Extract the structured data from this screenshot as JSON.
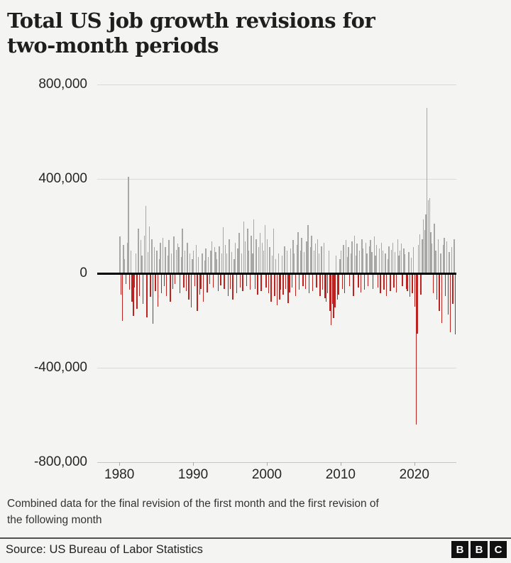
{
  "header": {
    "title_lines": [
      "Total US job growth revisions for",
      "two-month periods"
    ]
  },
  "chart_data": {
    "type": "bar",
    "title": "Total US job growth revisions for two-month periods",
    "xlabel": "",
    "ylabel": "",
    "x_tick_labels": [
      "1980",
      "1990",
      "2000",
      "2010",
      "2020"
    ],
    "y_tick_labels": [
      "800,000",
      "400,000",
      "0",
      "-400,000",
      "-800,000"
    ],
    "y_ticks": [
      800000,
      400000,
      0,
      -400000,
      -800000
    ],
    "ylim": [
      -800000,
      800000
    ],
    "xlim_years": [
      1977.0,
      2025.7
    ],
    "x_ticks_years": [
      1980,
      1990,
      2000,
      2010,
      2020
    ],
    "grid": true,
    "legend": false,
    "bar_colors": {
      "positive": "#a7a7a7",
      "negative": "#bc2220"
    },
    "zero_line_color": "#000000",
    "x_start_year": 1980,
    "x_step_years": 0.16667,
    "values": [
      155000,
      -90000,
      -200000,
      120000,
      60000,
      -45000,
      130000,
      410000,
      -70000,
      95000,
      -120000,
      -180000,
      -60000,
      85000,
      -150000,
      190000,
      -95000,
      140000,
      75000,
      -130000,
      160000,
      285000,
      -185000,
      90000,
      200000,
      -100000,
      145000,
      -215000,
      110000,
      -75000,
      95000,
      -140000,
      60000,
      130000,
      -85000,
      150000,
      -55000,
      110000,
      -95000,
      75000,
      140000,
      -120000,
      85000,
      -65000,
      155000,
      -45000,
      100000,
      125000,
      110000,
      -85000,
      70000,
      190000,
      -60000,
      95000,
      -75000,
      130000,
      -110000,
      85000,
      -145000,
      60000,
      95000,
      -55000,
      120000,
      -160000,
      70000,
      -90000,
      -65000,
      85000,
      -120000,
      55000,
      105000,
      -80000,
      70000,
      -45000,
      95000,
      135000,
      -60000,
      110000,
      90000,
      60000,
      -75000,
      115000,
      -50000,
      85000,
      195000,
      -65000,
      120000,
      85000,
      -95000,
      145000,
      -65000,
      90000,
      -110000,
      60000,
      130000,
      -85000,
      105000,
      170000,
      -60000,
      85000,
      -75000,
      220000,
      135000,
      -55000,
      190000,
      95000,
      -70000,
      160000,
      85000,
      230000,
      -65000,
      145000,
      -90000,
      110000,
      170000,
      -75000,
      130000,
      95000,
      205000,
      -60000,
      145000,
      -85000,
      110000,
      -120000,
      75000,
      190000,
      -95000,
      60000,
      -135000,
      85000,
      -110000,
      -70000,
      75000,
      -90000,
      115000,
      -65000,
      95000,
      -125000,
      -80000,
      105000,
      -60000,
      140000,
      85000,
      -95000,
      120000,
      175000,
      -70000,
      95000,
      150000,
      -55000,
      90000,
      -65000,
      135000,
      205000,
      -85000,
      110000,
      160000,
      -75000,
      95000,
      125000,
      -60000,
      145000,
      85000,
      -95000,
      115000,
      -70000,
      130000,
      -105000,
      -120000,
      -85000,
      95000,
      -160000,
      -220000,
      -130000,
      -190000,
      -145000,
      75000,
      -110000,
      -90000,
      60000,
      95000,
      -65000,
      120000,
      -85000,
      140000,
      70000,
      110000,
      -55000,
      85000,
      135000,
      -95000,
      160000,
      75000,
      125000,
      -60000,
      95000,
      -80000,
      145000,
      105000,
      -70000,
      130000,
      85000,
      -55000,
      115000,
      140000,
      90000,
      -65000,
      155000,
      75000,
      120000,
      -60000,
      105000,
      -85000,
      130000,
      95000,
      -70000,
      85000,
      -95000,
      60000,
      115000,
      -75000,
      100000,
      130000,
      -60000,
      90000,
      -80000,
      145000,
      75000,
      95000,
      125000,
      -55000,
      105000,
      80000,
      -65000,
      -75000,
      90000,
      -100000,
      65000,
      -85000,
      110000,
      -140000,
      -640000,
      -255000,
      120000,
      165000,
      -90000,
      145000,
      230000,
      185000,
      250000,
      700000,
      310000,
      320000,
      175000,
      125000,
      -85000,
      210000,
      95000,
      -110000,
      145000,
      -160000,
      85000,
      -210000,
      120000,
      150000,
      -95000,
      135000,
      -175000,
      90000,
      -250000,
      110000,
      -130000,
      145000,
      -260000
    ]
  },
  "footnote": {
    "lines": [
      "Combined data for the final revision of the first month and the first revision of",
      "the following month"
    ]
  },
  "footer": {
    "source": "Source: US Bureau of Labor Statistics",
    "logo": {
      "letters": [
        "B",
        "B",
        "C"
      ]
    }
  }
}
